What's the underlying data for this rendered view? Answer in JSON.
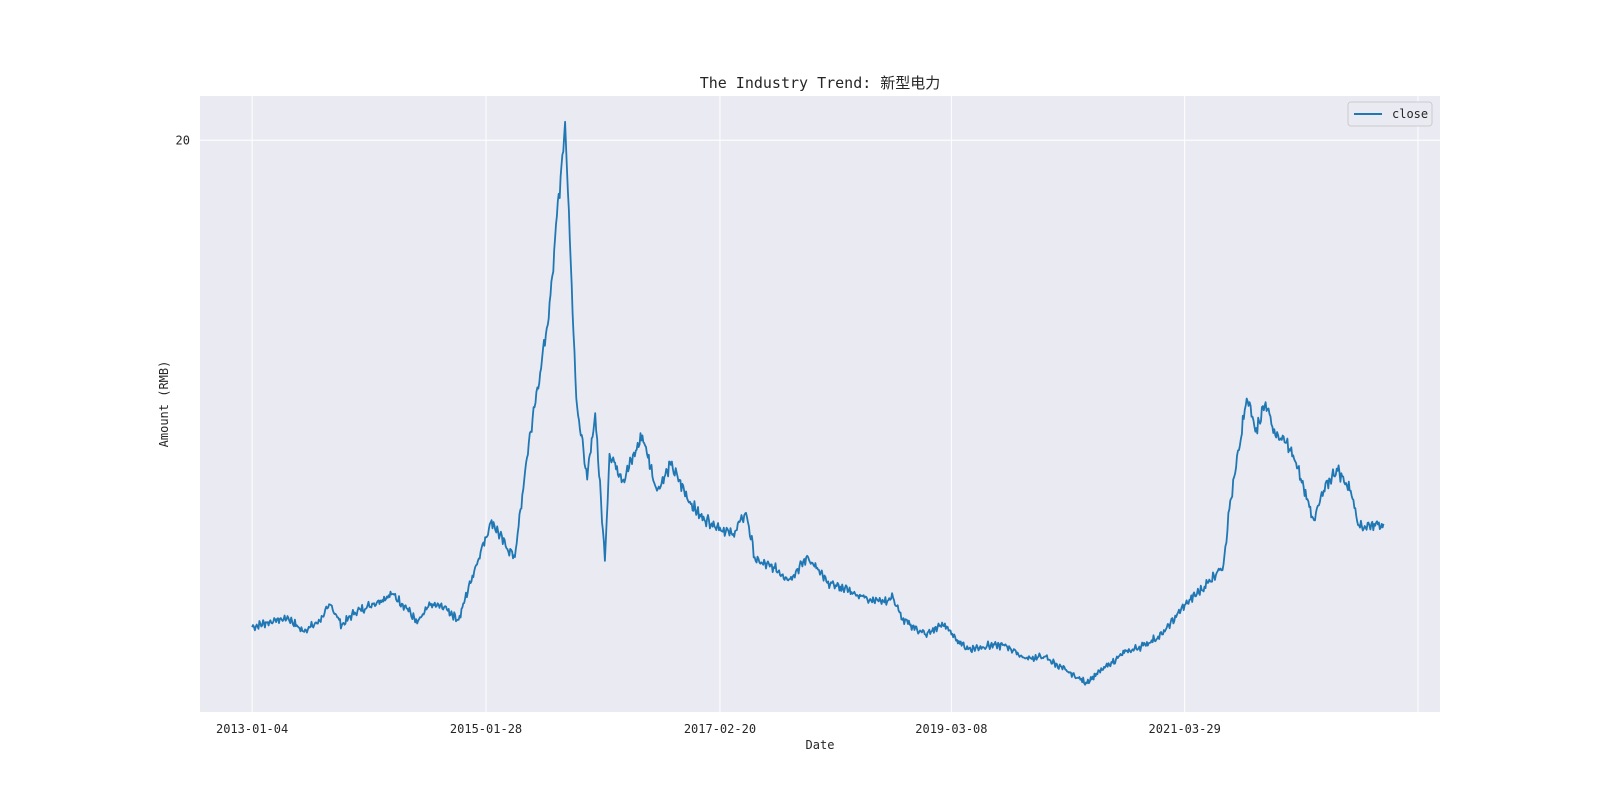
{
  "chart_data": {
    "type": "line",
    "title": "The Industry Trend: 新型电力",
    "xlabel": "Date",
    "ylabel": "Amount (RMB)",
    "x_start": "2013-01-04",
    "x_end": "2022-12-30",
    "xlim": [
      "2012-07-20",
      "2023-06-30"
    ],
    "ylim": [
      4.5,
      21.2
    ],
    "x_ticks": [
      "2013-01-04",
      "2015-01-28",
      "2017-02-20",
      "2019-03-08",
      "2021-03-29",
      "2023-04-20"
    ],
    "x_tick_labels": [
      "2013-01-04",
      "2015-01-28",
      "2017-02-20",
      "2019-03-08",
      "2021-03-29",
      ""
    ],
    "y_ticks": [
      20
    ],
    "grid": true,
    "background_color": "#eaeaf2",
    "line_color": "#1f77b4",
    "legend_position": "top-right",
    "series": [
      {
        "name": "close",
        "points": [
          [
            "2013-01-04",
            6.8
          ],
          [
            "2013-03-01",
            6.95
          ],
          [
            "2013-05-01",
            7.05
          ],
          [
            "2013-06-15",
            6.7
          ],
          [
            "2013-08-01",
            6.9
          ],
          [
            "2013-09-15",
            7.4
          ],
          [
            "2013-10-20",
            6.85
          ],
          [
            "2013-12-01",
            7.2
          ],
          [
            "2014-02-01",
            7.45
          ],
          [
            "2014-04-01",
            7.7
          ],
          [
            "2014-05-20",
            7.3
          ],
          [
            "2014-06-20",
            6.9
          ],
          [
            "2014-08-01",
            7.4
          ],
          [
            "2014-09-15",
            7.35
          ],
          [
            "2014-11-01",
            7.0
          ],
          [
            "2014-12-15",
            8.2
          ],
          [
            "2015-02-15",
            9.7
          ],
          [
            "2015-04-01",
            9.0
          ],
          [
            "2015-05-01",
            8.7
          ],
          [
            "2015-06-15",
            11.8
          ],
          [
            "2015-08-15",
            15.0
          ],
          [
            "2015-10-10",
            20.5
          ],
          [
            "2015-11-15",
            13.0
          ],
          [
            "2015-12-20",
            10.8
          ],
          [
            "2016-01-15",
            12.6
          ],
          [
            "2016-02-15",
            8.6
          ],
          [
            "2016-03-01",
            11.5
          ],
          [
            "2016-04-15",
            10.8
          ],
          [
            "2016-06-15",
            12.0
          ],
          [
            "2016-08-01",
            10.5
          ],
          [
            "2016-09-15",
            11.2
          ],
          [
            "2016-11-15",
            10.2
          ],
          [
            "2016-12-20",
            9.8
          ],
          [
            "2017-02-20",
            9.5
          ],
          [
            "2017-04-01",
            9.3
          ],
          [
            "2017-05-15",
            9.9
          ],
          [
            "2017-06-15",
            8.6
          ],
          [
            "2017-08-15",
            8.4
          ],
          [
            "2017-10-01",
            8.1
          ],
          [
            "2017-12-01",
            8.7
          ],
          [
            "2018-02-01",
            8.0
          ],
          [
            "2018-03-15",
            7.9
          ],
          [
            "2018-06-01",
            7.6
          ],
          [
            "2018-08-01",
            7.5
          ],
          [
            "2018-09-01",
            7.6
          ],
          [
            "2018-10-01",
            7.0
          ],
          [
            "2018-12-15",
            6.6
          ],
          [
            "2019-02-15",
            6.9
          ],
          [
            "2019-03-08",
            6.6
          ],
          [
            "2019-05-01",
            6.2
          ],
          [
            "2019-07-01",
            6.3
          ],
          [
            "2019-09-01",
            6.3
          ],
          [
            "2019-11-01",
            5.95
          ],
          [
            "2020-01-01",
            6.0
          ],
          [
            "2020-03-15",
            5.6
          ],
          [
            "2020-05-15",
            5.3
          ],
          [
            "2020-07-15",
            5.7
          ],
          [
            "2020-09-15",
            6.1
          ],
          [
            "2020-11-15",
            6.3
          ],
          [
            "2021-01-15",
            6.6
          ],
          [
            "2021-03-29",
            7.4
          ],
          [
            "2021-06-01",
            7.9
          ],
          [
            "2021-08-01",
            8.5
          ],
          [
            "2021-08-20",
            10.0
          ],
          [
            "2021-09-20",
            11.6
          ],
          [
            "2021-10-15",
            13.0
          ],
          [
            "2021-11-15",
            12.2
          ],
          [
            "2021-12-15",
            12.9
          ],
          [
            "2022-01-15",
            12.0
          ],
          [
            "2022-02-20",
            11.8
          ],
          [
            "2022-03-20",
            11.3
          ],
          [
            "2022-05-20",
            9.7
          ],
          [
            "2022-06-20",
            10.5
          ],
          [
            "2022-08-01",
            11.1
          ],
          [
            "2022-09-15",
            10.5
          ],
          [
            "2022-10-15",
            9.5
          ],
          [
            "2022-11-30",
            9.6
          ],
          [
            "2022-12-30",
            9.6
          ]
        ]
      }
    ]
  }
}
